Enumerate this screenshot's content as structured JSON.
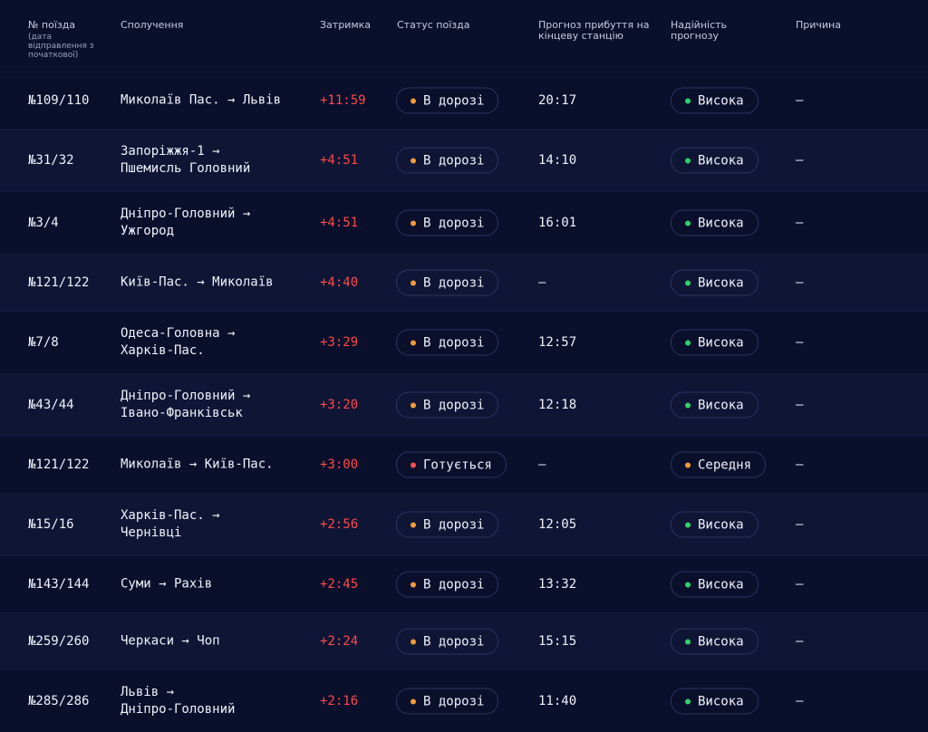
{
  "header": {
    "train_no": "№ поїзда",
    "train_no_sub": "(дата відправлення з початкової)",
    "route": "Сполучення",
    "delay": "Затримка",
    "status": "Статус поїзда",
    "eta": "Прогноз прибуття на кінцеву станцію",
    "reliability": "Надійність прогнозу",
    "reason": "Причина"
  },
  "colors": {
    "background": "#0a0f2c",
    "row_alt": "#0f1535",
    "delay_red": "#ff4a4a",
    "dot_orange": "#f29b38",
    "dot_red": "#ff4d4d",
    "dot_green": "#2fd36a"
  },
  "rows": [
    {
      "num": "№109/110",
      "route": [
        "Миколаїв Пас. → Львів"
      ],
      "delay": "+11:59",
      "status": "В дорозі",
      "status_dot": "orange",
      "eta": "20:17",
      "reliability": "Висока",
      "reliability_dot": "green",
      "reason": "—"
    },
    {
      "num": "№31/32",
      "route": [
        "Запоріжжя-1 →",
        "Пшемисль Головний"
      ],
      "delay": "+4:51",
      "status": "В дорозі",
      "status_dot": "orange",
      "eta": "14:10",
      "reliability": "Висока",
      "reliability_dot": "green",
      "reason": "—"
    },
    {
      "num": "№3/4",
      "route": [
        "Дніпро-Головний →",
        "Ужгород"
      ],
      "delay": "+4:51",
      "status": "В дорозі",
      "status_dot": "orange",
      "eta": "16:01",
      "reliability": "Висока",
      "reliability_dot": "green",
      "reason": "—"
    },
    {
      "num": "№121/122",
      "route": [
        "Київ-Пас. → Миколаїв"
      ],
      "delay": "+4:40",
      "status": "В дорозі",
      "status_dot": "orange",
      "eta": "—",
      "reliability": "Висока",
      "reliability_dot": "green",
      "reason": "—"
    },
    {
      "num": "№7/8",
      "route": [
        "Одеса-Головна →",
        "Харків-Пас."
      ],
      "delay": "+3:29",
      "status": "В дорозі",
      "status_dot": "orange",
      "eta": "12:57",
      "reliability": "Висока",
      "reliability_dot": "green",
      "reason": "—"
    },
    {
      "num": "№43/44",
      "route": [
        "Дніпро-Головний →",
        "Івано-Франківськ"
      ],
      "delay": "+3:20",
      "status": "В дорозі",
      "status_dot": "orange",
      "eta": "12:18",
      "reliability": "Висока",
      "reliability_dot": "green",
      "reason": "—"
    },
    {
      "num": "№121/122",
      "route": [
        "Миколаїв → Київ-Пас."
      ],
      "delay": "+3:00",
      "status": "Готується",
      "status_dot": "red",
      "eta": "—",
      "reliability": "Середня",
      "reliability_dot": "orange",
      "reason": "—"
    },
    {
      "num": "№15/16",
      "route": [
        "Харків-Пас. →",
        "Чернівці"
      ],
      "delay": "+2:56",
      "status": "В дорозі",
      "status_dot": "orange",
      "eta": "12:05",
      "reliability": "Висока",
      "reliability_dot": "green",
      "reason": "—"
    },
    {
      "num": "№143/144",
      "route": [
        "Суми → Рахів"
      ],
      "delay": "+2:45",
      "status": "В дорозі",
      "status_dot": "orange",
      "eta": "13:32",
      "reliability": "Висока",
      "reliability_dot": "green",
      "reason": "—"
    },
    {
      "num": "№259/260",
      "route": [
        "Черкаси → Чоп"
      ],
      "delay": "+2:24",
      "status": "В дорозі",
      "status_dot": "orange",
      "eta": "15:15",
      "reliability": "Висока",
      "reliability_dot": "green",
      "reason": "—"
    },
    {
      "num": "№285/286",
      "route": [
        "Львів →",
        "Дніпро-Головний"
      ],
      "delay": "+2:16",
      "status": "В дорозі",
      "status_dot": "orange",
      "eta": "11:40",
      "reliability": "Висока",
      "reliability_dot": "green",
      "reason": "—"
    }
  ]
}
